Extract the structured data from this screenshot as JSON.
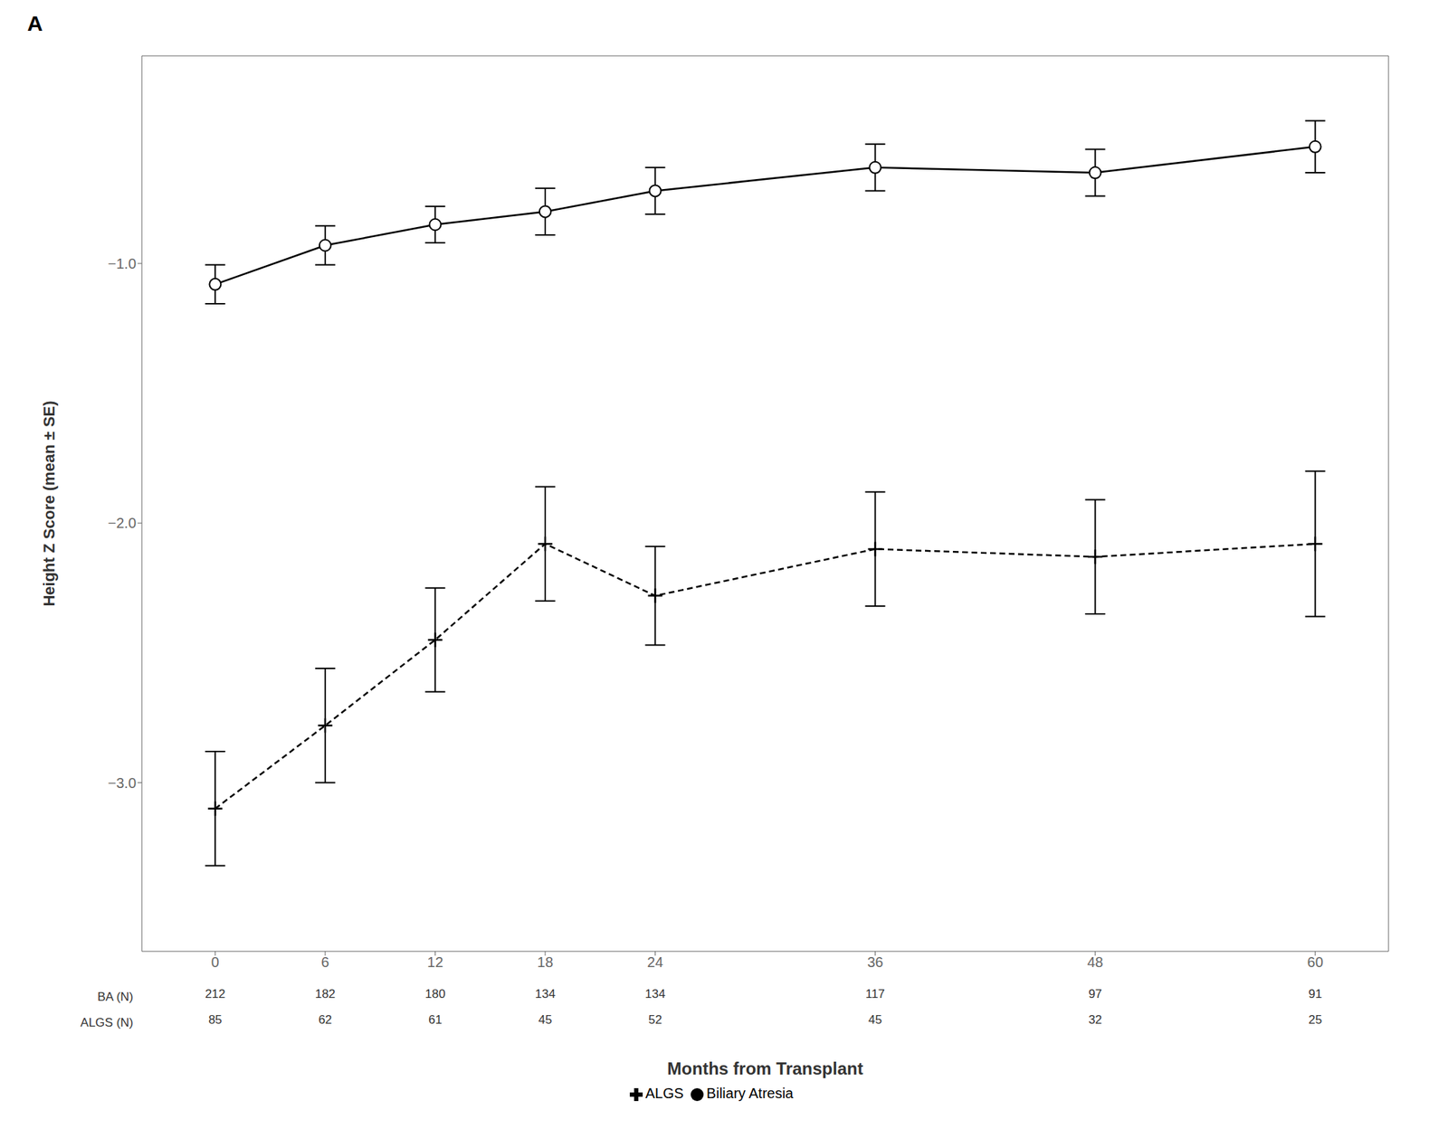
{
  "chart_data": {
    "type": "line",
    "title": "A",
    "xlabel": "Months from Transplant",
    "ylabel": "Height Z Score (mean ± SE)",
    "x": [
      0,
      6,
      12,
      18,
      24,
      36,
      48,
      60
    ],
    "xlim": [
      -4,
      64
    ],
    "xticks": [
      0,
      6,
      12,
      18,
      24,
      36,
      48,
      60
    ],
    "ylim": [
      -3.65,
      -0.2
    ],
    "yticks": [
      {
        "value": -3.0,
        "label": "−3.0"
      },
      {
        "value": -2.0,
        "label": "−2.0"
      },
      {
        "value": -1.0,
        "label": "−1.0"
      }
    ],
    "grid": false,
    "legend": "bottom",
    "series": [
      {
        "name": "Biliary Atresia",
        "color": "#000000",
        "marker": "circle",
        "line_style": "solid",
        "values": [
          -1.08,
          -0.93,
          -0.85,
          -0.8,
          -0.72,
          -0.63,
          -0.65,
          -0.55
        ],
        "se": [
          0.075,
          0.075,
          0.07,
          0.09,
          0.09,
          0.09,
          0.09,
          0.1
        ],
        "n_label": "BA (N)",
        "n": [
          212,
          182,
          180,
          134,
          134,
          117,
          97,
          91
        ]
      },
      {
        "name": "ALGS",
        "color": "#000000",
        "marker": "plus",
        "line_style": "dashed",
        "values": [
          -3.1,
          -2.78,
          -2.45,
          -2.08,
          -2.28,
          -2.1,
          -2.13,
          -2.08
        ],
        "se": [
          0.22,
          0.22,
          0.2,
          0.22,
          0.19,
          0.22,
          0.22,
          0.28
        ],
        "n_label": "ALGS (N)",
        "n": [
          85,
          62,
          61,
          45,
          52,
          45,
          32,
          25
        ]
      }
    ]
  }
}
